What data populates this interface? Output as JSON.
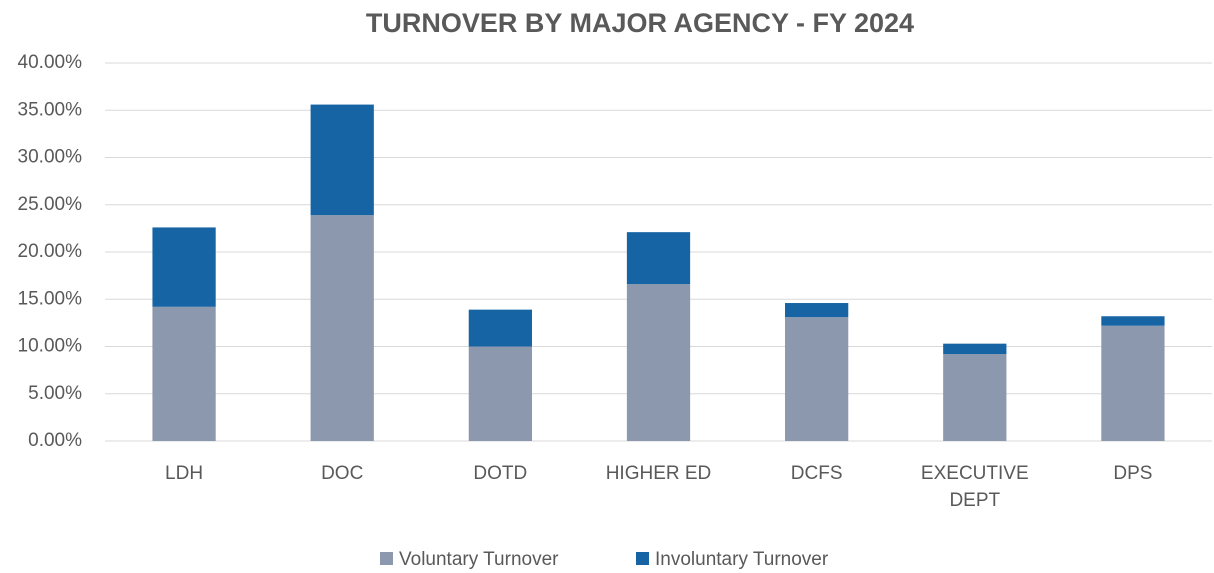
{
  "chart_data": {
    "type": "stacked_bar",
    "title": "TURNOVER BY MAJOR AGENCY - FY 2024",
    "categories": [
      "LDH",
      "DOC",
      "DOTD",
      "HIGHER ED",
      "DCFS",
      "EXECUTIVE DEPT",
      "DPS"
    ],
    "series": [
      {
        "name": "Voluntary Turnover",
        "color": "#8c98ad",
        "values": [
          14.2,
          23.9,
          10.0,
          16.6,
          13.1,
          9.2,
          12.2
        ]
      },
      {
        "name": "Involuntary Turnover",
        "color": "#1764a5",
        "values": [
          8.4,
          11.7,
          3.9,
          5.5,
          1.5,
          1.1,
          1.0
        ]
      }
    ],
    "ylim": [
      0,
      40
    ],
    "yticks": [
      {
        "value": 0,
        "label": "0.00%"
      },
      {
        "value": 5,
        "label": "5.00%"
      },
      {
        "value": 10,
        "label": "10.00%"
      },
      {
        "value": 15,
        "label": "15.00%"
      },
      {
        "value": 20,
        "label": "20.00%"
      },
      {
        "value": 25,
        "label": "25.00%"
      },
      {
        "value": 30,
        "label": "30.00%"
      },
      {
        "value": 35,
        "label": "35.00%"
      },
      {
        "value": 40,
        "label": "40.00%"
      }
    ],
    "grid": true,
    "legend": "bottom"
  }
}
